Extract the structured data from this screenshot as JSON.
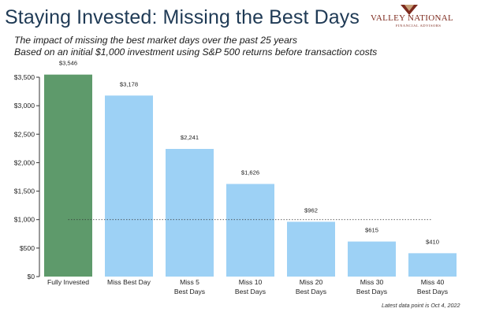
{
  "header": {
    "title": "Staying Invested: Missing the Best Days",
    "subtitle_line1": "The impact of missing the best market days over the past 25 years",
    "subtitle_line2": "Based on an initial $1,000 investment using S&P 500 returns before transaction costs"
  },
  "logo": {
    "name": "VALLEY NATIONAL",
    "tagline": "FINANCIAL ADVISORS",
    "color": "#7d2a1e",
    "accent_color": "#c9a27a"
  },
  "footnote": "Latest data point is Oct 4, 2022",
  "colors": {
    "highlight_bar": "#5e9a6b",
    "bar": "#9dd1f5",
    "axis": "#333333",
    "reference_line": "#333333"
  },
  "chart_data": {
    "type": "bar",
    "categories": [
      [
        "Fully Invested"
      ],
      [
        "Miss Best Day"
      ],
      [
        "Miss 5",
        "Best Days"
      ],
      [
        "Miss 10",
        "Best Days"
      ],
      [
        "Miss 20",
        "Best Days"
      ],
      [
        "Miss 30",
        "Best Days"
      ],
      [
        "Miss 40",
        "Best Days"
      ]
    ],
    "values": [
      3546,
      3178,
      2241,
      1626,
      962,
      615,
      410
    ],
    "value_labels": [
      "$3,546",
      "$3,178",
      "$2,241",
      "$1,626",
      "$962",
      "$615",
      "$410"
    ],
    "highlight_index": 0,
    "ylim": [
      0,
      3500
    ],
    "yticks": [
      0,
      500,
      1000,
      1500,
      2000,
      2500,
      3000,
      3500
    ],
    "ytick_labels": [
      "$0",
      "$500",
      "$1,000",
      "$1,500",
      "$2,000",
      "$2,500",
      "$3,000",
      "$3,500"
    ],
    "reference_line": {
      "value": 1000,
      "style": "dotted"
    },
    "title": "",
    "xlabel": "",
    "ylabel": "",
    "grid": false,
    "legend": "none"
  }
}
